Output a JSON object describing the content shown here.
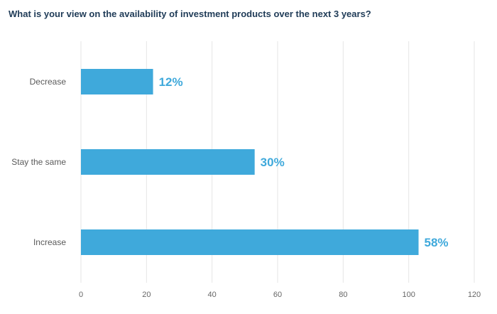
{
  "chart_data": {
    "type": "bar",
    "orientation": "horizontal",
    "title": "What is your view on the availability of investment products over the next 3 years?",
    "categories": [
      "Decrease",
      "Stay the same",
      "Increase"
    ],
    "values": [
      22,
      53,
      103
    ],
    "data_labels": [
      "12%",
      "30%",
      "58%"
    ],
    "xlim": [
      0,
      120
    ],
    "xticks": [
      0,
      20,
      40,
      60,
      80,
      100,
      120
    ],
    "xtick_labels": [
      "0",
      "20",
      "40",
      "60",
      "80",
      "100",
      "120"
    ],
    "grid": true,
    "bar_color": "#3fa9db",
    "label_color": "#3fa9db",
    "grid_color": "#e6e6e6"
  }
}
